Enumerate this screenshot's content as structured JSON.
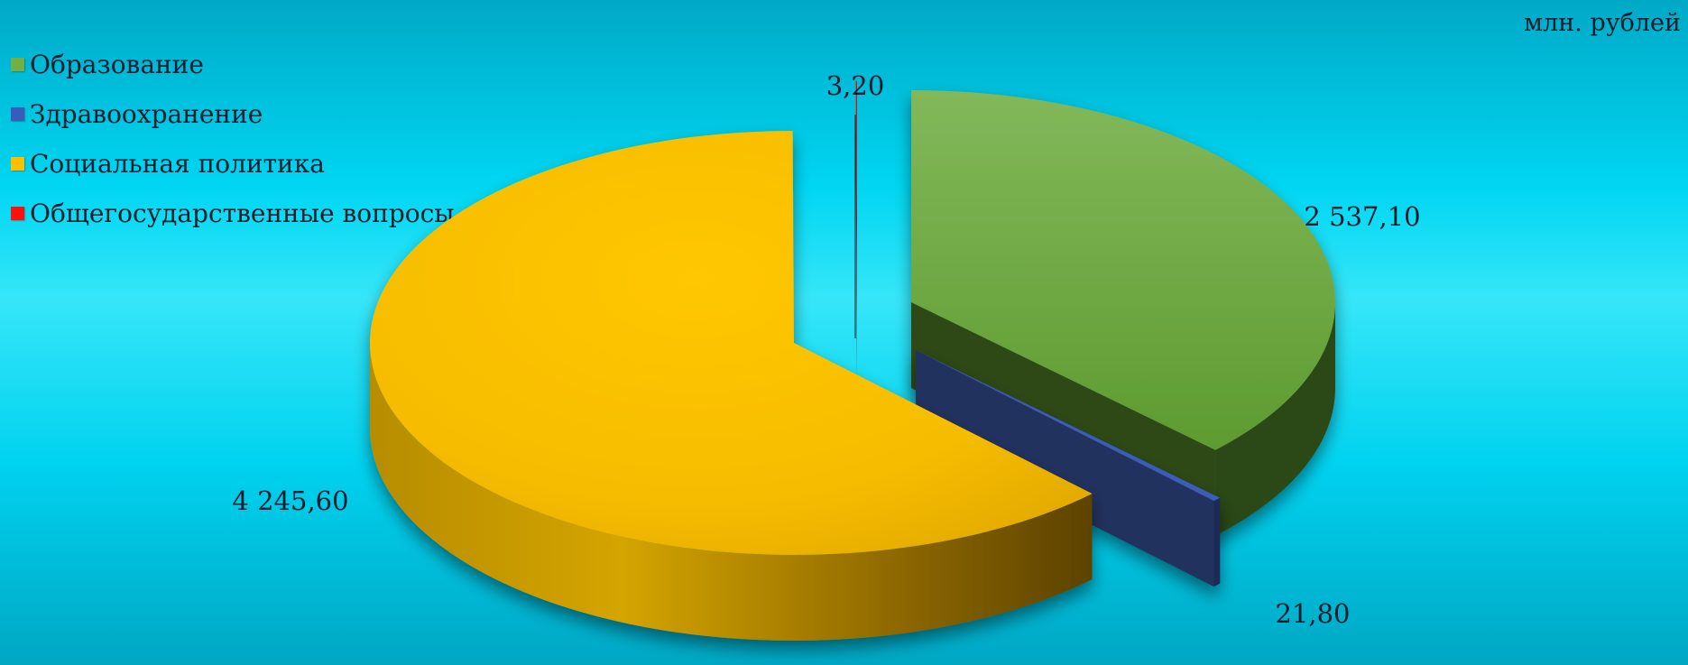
{
  "unit_label": "млн. рублей",
  "chart_data": {
    "type": "pie",
    "style": "3d-exploded",
    "slices": [
      {
        "name": "Образование",
        "value": 2537.1,
        "label": "2 537,10",
        "color": "#72b044"
      },
      {
        "name": "Здравоохранение",
        "value": 21.8,
        "label": "21,80",
        "color": "#3a5cb8"
      },
      {
        "name": "Социальная политика",
        "value": 4245.6,
        "label": "4 245,60",
        "color": "#fcc000"
      },
      {
        "name": "Общегосударственные вопросы",
        "value": 3.2,
        "label": "3,20",
        "color": "#ff1010"
      }
    ],
    "legend_position": "top-left"
  }
}
